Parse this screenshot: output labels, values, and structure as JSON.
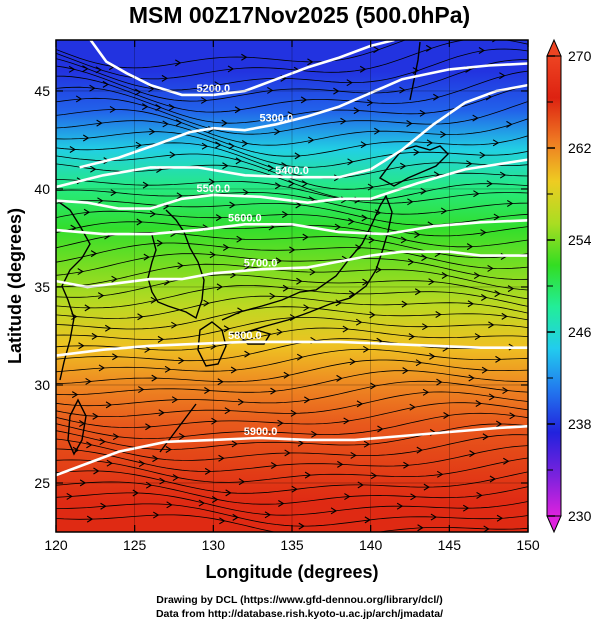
{
  "chart_data": {
    "type": "heatmap",
    "title": "MSM 00Z17Nov2025 (500.0hPa)",
    "xlabel": "Longitude (degrees)",
    "ylabel": "Latitude  (degrees)",
    "xlim": [
      120,
      150
    ],
    "ylim": [
      22.5,
      47.6
    ],
    "x_ticks": [
      120,
      125,
      130,
      135,
      140,
      145,
      150
    ],
    "x_tick_labels": [
      "120",
      "125",
      "130",
      "135",
      "140",
      "145",
      "150"
    ],
    "y_ticks": [
      25,
      30,
      35,
      40,
      45
    ],
    "y_tick_labels": [
      "25",
      "30",
      "35",
      "40",
      "45"
    ],
    "colorbar": {
      "range": [
        230,
        270
      ],
      "ticks": [
        230,
        238,
        246,
        254,
        262,
        270
      ],
      "tick_labels": [
        "230",
        "238",
        "246",
        "254",
        "262",
        "270"
      ],
      "minor_ticks": [
        234,
        242,
        250,
        258,
        266
      ],
      "colors": [
        "#dd22dd",
        "#7722dd",
        "#2222dd",
        "#2277ee",
        "#22ccee",
        "#22ee99",
        "#33dd22",
        "#aadd22",
        "#eecc22",
        "#ee7722",
        "#dd2211",
        "#ee4422"
      ]
    },
    "temperature_by_latitude": {
      "lat": [
        24,
        26,
        28,
        30,
        32,
        34,
        36,
        38,
        40,
        42,
        44,
        46
      ],
      "temp": [
        266,
        265,
        264,
        262,
        259.5,
        256.5,
        254,
        251.5,
        249,
        245,
        240,
        238
      ]
    },
    "contours": [
      {
        "label": "5300.0",
        "points": [
          [
            121.5,
            41.1
          ],
          [
            124,
            41.6
          ],
          [
            126.5,
            42.3
          ],
          [
            128.5,
            42.9
          ],
          [
            130,
            43.1
          ],
          [
            132,
            43.0
          ],
          [
            134,
            43.3
          ],
          [
            136,
            43.7
          ],
          [
            138,
            44.2
          ],
          [
            140,
            44.9
          ],
          [
            142,
            45.6
          ],
          [
            145,
            46.1
          ],
          [
            147.5,
            46.3
          ],
          [
            150,
            46.4
          ]
        ]
      },
      {
        "label": "5200.0",
        "points": [
          [
            122.2,
            47.6
          ],
          [
            123.2,
            46.5
          ],
          [
            124.5,
            45.9
          ],
          [
            126,
            45.3
          ],
          [
            128,
            44.8
          ],
          [
            130,
            44.8
          ],
          [
            132,
            45.0
          ],
          [
            134,
            45.6
          ],
          [
            136,
            46.2
          ],
          [
            138,
            46.7
          ],
          [
            140,
            47.3
          ],
          [
            141.5,
            47.6
          ]
        ]
      },
      {
        "label": "5400.0",
        "points": [
          [
            120,
            40.1
          ],
          [
            123,
            40.7
          ],
          [
            126,
            41.1
          ],
          [
            129,
            41.1
          ],
          [
            132,
            40.7
          ],
          [
            135,
            40.6
          ],
          [
            138,
            40.6
          ],
          [
            140,
            41.0
          ],
          [
            142,
            42.0
          ],
          [
            144,
            43.3
          ],
          [
            146,
            44.4
          ],
          [
            148,
            45.0
          ],
          [
            150,
            45.3
          ]
        ]
      },
      {
        "label": "5500.0",
        "points": [
          [
            120,
            39.4
          ],
          [
            122,
            39.3
          ],
          [
            124,
            39.0
          ],
          [
            126,
            39.0
          ],
          [
            128,
            39.5
          ],
          [
            130,
            39.7
          ],
          [
            133,
            39.6
          ],
          [
            136,
            39.3
          ],
          [
            138,
            39.5
          ],
          [
            140,
            39.5
          ],
          [
            143,
            40.3
          ],
          [
            146,
            41.0
          ],
          [
            150,
            41.5
          ]
        ]
      },
      {
        "label": "5600.0",
        "points": [
          [
            120,
            37.9
          ],
          [
            123,
            37.7
          ],
          [
            126,
            37.7
          ],
          [
            129,
            37.9
          ],
          [
            132,
            38.2
          ],
          [
            135,
            38.2
          ],
          [
            138,
            37.8
          ],
          [
            141,
            37.7
          ],
          [
            144,
            38.1
          ],
          [
            147,
            38.3
          ],
          [
            150,
            38.4
          ]
        ]
      },
      {
        "label": "5700.0",
        "points": [
          [
            120,
            35.3
          ],
          [
            122,
            35.0
          ],
          [
            124,
            35.2
          ],
          [
            126,
            35.4
          ],
          [
            128,
            35.4
          ],
          [
            130,
            35.7
          ],
          [
            133,
            35.9
          ],
          [
            136,
            36.0
          ],
          [
            138,
            36.3
          ],
          [
            140,
            36.6
          ],
          [
            142,
            36.8
          ],
          [
            145,
            36.8
          ],
          [
            147,
            36.6
          ],
          [
            150,
            36.6
          ]
        ]
      },
      {
        "label": "5800.0",
        "points": [
          [
            120,
            31.5
          ],
          [
            123,
            31.8
          ],
          [
            126,
            32.0
          ],
          [
            129,
            32.1
          ],
          [
            132,
            32.2
          ],
          [
            135,
            32.2
          ],
          [
            138,
            32.2
          ],
          [
            141,
            32.1
          ],
          [
            144,
            32.0
          ],
          [
            147,
            31.9
          ],
          [
            150,
            31.9
          ]
        ]
      },
      {
        "label": "5900.0",
        "points": [
          [
            120,
            25.4
          ],
          [
            122,
            26.0
          ],
          [
            124,
            26.6
          ],
          [
            127,
            27.1
          ],
          [
            130,
            27.2
          ],
          [
            133,
            27.3
          ],
          [
            136,
            27.2
          ],
          [
            139,
            27.2
          ],
          [
            142,
            27.4
          ],
          [
            145,
            27.6
          ],
          [
            148,
            27.8
          ],
          [
            150,
            27.9
          ]
        ]
      }
    ],
    "streamline_flow": "westerly",
    "grid": true
  },
  "labels": {
    "credit_line1": "Drawing by DCL (https://www.gfd-dennou.org/library/dcl/)",
    "credit_line2": "Data from http://database.rish.kyoto-u.ac.jp/arch/jmadata/"
  }
}
